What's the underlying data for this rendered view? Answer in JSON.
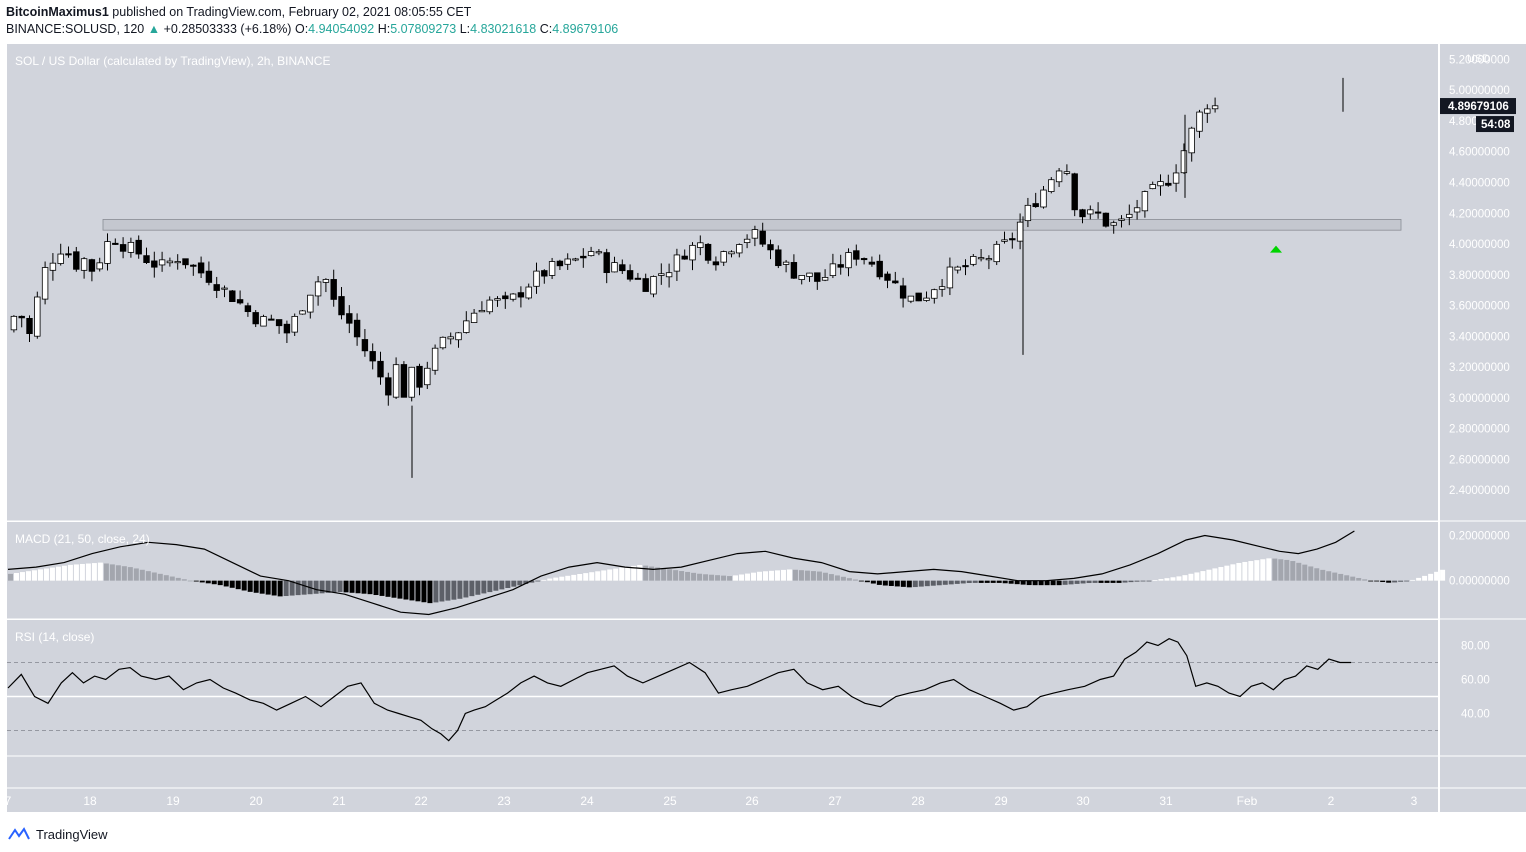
{
  "header": {
    "author": "BitcoinMaximus1",
    "published_text": "published on TradingView.com, February 02, 2021 08:05:55 CET",
    "symbol": "BINANCE:SOLUSD, 120",
    "change": "+0.28503333 (+6.18%)",
    "o_label": "O:",
    "o_value": "4.94054092",
    "h_label": "H:",
    "h_value": "5.07809273",
    "l_label": "L:",
    "l_value": "4.83021618",
    "c_label": "C:",
    "c_value": "4.89679106"
  },
  "footer": {
    "brand": "TradingView"
  },
  "colors": {
    "pane_bg": "#d1d4dc",
    "candle_up": "#ffffff",
    "candle_down": "#000000",
    "zone": "#c4c7cf",
    "signal_arrow": "#00d400",
    "price_tag_bg": "#131722"
  },
  "chart_data": {
    "type": "candlestick",
    "title": "SOL / US Dollar (calculated by TradingView), 2h, BINANCE",
    "currency": "USD",
    "x_ticks": [
      "7",
      "18",
      "19",
      "20",
      "21",
      "22",
      "23",
      "24",
      "25",
      "26",
      "27",
      "28",
      "29",
      "30",
      "31",
      "Feb",
      "2",
      "3"
    ],
    "y_ticks": [
      "5.20000000",
      "5.00000000",
      "4.80000000",
      "4.60000000",
      "4.40000000",
      "4.20000000",
      "4.00000000",
      "3.80000000",
      "3.60000000",
      "3.40000000",
      "3.20000000",
      "3.00000000",
      "2.80000000",
      "2.60000000",
      "2.40000000"
    ],
    "ylim": [
      2.2,
      5.3
    ],
    "last_price": "4.89679106",
    "countdown": "54:08",
    "resistance_zone": [
      4.09,
      4.16
    ],
    "signal_arrow": {
      "type": "buy",
      "at": "Feb 1",
      "price": 3.97
    },
    "close_path": [
      [
        0,
        3.44
      ],
      [
        12,
        3.58
      ],
      [
        24,
        3.4
      ],
      [
        36,
        3.8
      ],
      [
        48,
        3.92
      ],
      [
        58,
        4.0
      ],
      [
        68,
        3.86
      ],
      [
        78,
        3.9
      ],
      [
        88,
        3.82
      ],
      [
        100,
        4.0
      ],
      [
        110,
        4.04
      ],
      [
        120,
        3.98
      ],
      [
        133,
        3.94
      ],
      [
        145,
        3.88
      ],
      [
        158,
        3.85
      ],
      [
        170,
        3.92
      ],
      [
        182,
        3.88
      ],
      [
        194,
        3.82
      ],
      [
        205,
        3.78
      ],
      [
        218,
        3.7
      ],
      [
        230,
        3.64
      ],
      [
        242,
        3.56
      ],
      [
        255,
        3.5
      ],
      [
        268,
        3.5
      ],
      [
        282,
        3.42
      ],
      [
        294,
        3.58
      ],
      [
        306,
        3.72
      ],
      [
        318,
        3.8
      ],
      [
        330,
        3.58
      ],
      [
        342,
        3.5
      ],
      [
        352,
        3.38
      ],
      [
        362,
        3.28
      ],
      [
        372,
        3.16
      ],
      [
        382,
        3.06
      ],
      [
        390,
        3.2
      ],
      [
        397,
        3.02
      ],
      [
        405,
        3.16
      ],
      [
        412,
        3.08
      ],
      [
        420,
        3.2
      ],
      [
        430,
        3.3
      ],
      [
        440,
        3.38
      ],
      [
        450,
        3.42
      ],
      [
        462,
        3.52
      ],
      [
        474,
        3.6
      ],
      [
        486,
        3.64
      ],
      [
        498,
        3.6
      ],
      [
        510,
        3.66
      ],
      [
        522,
        3.74
      ],
      [
        534,
        3.8
      ],
      [
        546,
        3.84
      ],
      [
        558,
        3.86
      ],
      [
        572,
        3.9
      ],
      [
        586,
        3.96
      ],
      [
        600,
        3.86
      ],
      [
        614,
        3.84
      ],
      [
        628,
        3.78
      ],
      [
        640,
        3.74
      ],
      [
        652,
        3.8
      ],
      [
        666,
        3.86
      ],
      [
        680,
        3.96
      ],
      [
        694,
        4.0
      ],
      [
        708,
        3.9
      ],
      [
        720,
        3.96
      ],
      [
        734,
        4.04
      ],
      [
        748,
        4.06
      ],
      [
        760,
        3.98
      ],
      [
        772,
        3.9
      ],
      [
        786,
        3.82
      ],
      [
        800,
        3.8
      ],
      [
        812,
        3.76
      ],
      [
        826,
        3.82
      ],
      [
        840,
        3.9
      ],
      [
        852,
        3.94
      ],
      [
        866,
        3.88
      ],
      [
        880,
        3.8
      ],
      [
        894,
        3.7
      ],
      [
        906,
        3.64
      ],
      [
        918,
        3.66
      ],
      [
        930,
        3.74
      ],
      [
        942,
        3.8
      ],
      [
        955,
        3.84
      ],
      [
        970,
        3.88
      ],
      [
        984,
        3.92
      ],
      [
        996,
        3.98
      ],
      [
        1006,
        4.04
      ],
      [
        1016,
        4.16
      ],
      [
        1026,
        4.26
      ],
      [
        1036,
        4.34
      ],
      [
        1046,
        4.44
      ],
      [
        1054,
        4.52
      ],
      [
        1062,
        4.48
      ],
      [
        1070,
        4.22
      ],
      [
        1080,
        4.18
      ],
      [
        1090,
        4.2
      ],
      [
        1100,
        4.14
      ],
      [
        1110,
        4.12
      ],
      [
        1120,
        4.16
      ],
      [
        1130,
        4.24
      ],
      [
        1140,
        4.3
      ],
      [
        1150,
        4.36
      ],
      [
        1160,
        4.4
      ],
      [
        1170,
        4.5
      ],
      [
        1180,
        4.64
      ],
      [
        1190,
        4.8
      ],
      [
        1200,
        4.92
      ],
      [
        1210,
        4.89
      ]
    ],
    "macd": {
      "label": "MACD (21, 50, close, 24)",
      "y_ticks": [
        "0.20000000",
        "0.00000000"
      ],
      "ylim": [
        -0.17,
        0.26
      ],
      "line": [
        [
          0,
          0.05
        ],
        [
          30,
          0.06
        ],
        [
          60,
          0.08
        ],
        [
          90,
          0.12
        ],
        [
          120,
          0.15
        ],
        [
          150,
          0.17
        ],
        [
          180,
          0.16
        ],
        [
          210,
          0.14
        ],
        [
          240,
          0.08
        ],
        [
          270,
          0.02
        ],
        [
          300,
          0.0
        ],
        [
          330,
          -0.04
        ],
        [
          360,
          -0.06
        ],
        [
          390,
          -0.1
        ],
        [
          420,
          -0.14
        ],
        [
          450,
          -0.15
        ],
        [
          480,
          -0.12
        ],
        [
          510,
          -0.08
        ],
        [
          540,
          -0.04
        ],
        [
          570,
          0.02
        ],
        [
          600,
          0.06
        ],
        [
          630,
          0.08
        ],
        [
          660,
          0.06
        ],
        [
          690,
          0.05
        ],
        [
          720,
          0.06
        ],
        [
          750,
          0.09
        ],
        [
          780,
          0.12
        ],
        [
          810,
          0.13
        ],
        [
          840,
          0.1
        ],
        [
          870,
          0.08
        ],
        [
          900,
          0.04
        ],
        [
          930,
          0.03
        ],
        [
          960,
          0.04
        ],
        [
          990,
          0.05
        ],
        [
          1020,
          0.04
        ],
        [
          1050,
          0.02
        ],
        [
          1080,
          0.0
        ],
        [
          1110,
          0.0
        ],
        [
          1140,
          0.01
        ],
        [
          1170,
          0.03
        ],
        [
          1200,
          0.07
        ],
        [
          1230,
          0.12
        ],
        [
          1260,
          0.18
        ],
        [
          1280,
          0.2
        ],
        [
          1310,
          0.18
        ],
        [
          1340,
          0.15
        ],
        [
          1360,
          0.13
        ],
        [
          1380,
          0.12
        ],
        [
          1400,
          0.14
        ],
        [
          1420,
          0.17
        ],
        [
          1440,
          0.22
        ]
      ],
      "hist": [
        [
          0,
          0.03
        ],
        [
          30,
          0.05
        ],
        [
          60,
          0.07
        ],
        [
          90,
          0.08
        ],
        [
          120,
          0.06
        ],
        [
          150,
          0.03
        ],
        [
          180,
          0.0
        ],
        [
          210,
          -0.02
        ],
        [
          240,
          -0.05
        ],
        [
          270,
          -0.07
        ],
        [
          300,
          -0.06
        ],
        [
          330,
          -0.05
        ],
        [
          360,
          -0.06
        ],
        [
          390,
          -0.08
        ],
        [
          420,
          -0.1
        ],
        [
          450,
          -0.08
        ],
        [
          480,
          -0.05
        ],
        [
          510,
          -0.02
        ],
        [
          540,
          0.01
        ],
        [
          570,
          0.03
        ],
        [
          600,
          0.05
        ],
        [
          630,
          0.07
        ],
        [
          660,
          0.05
        ],
        [
          690,
          0.03
        ],
        [
          720,
          0.02
        ],
        [
          750,
          0.04
        ],
        [
          780,
          0.05
        ],
        [
          810,
          0.04
        ],
        [
          840,
          0.01
        ],
        [
          870,
          -0.02
        ],
        [
          900,
          -0.03
        ],
        [
          930,
          -0.02
        ],
        [
          960,
          -0.01
        ],
        [
          990,
          -0.01
        ],
        [
          1020,
          -0.02
        ],
        [
          1050,
          -0.02
        ],
        [
          1080,
          -0.01
        ],
        [
          1110,
          -0.01
        ],
        [
          1140,
          0.0
        ],
        [
          1170,
          0.02
        ],
        [
          1200,
          0.05
        ],
        [
          1230,
          0.08
        ],
        [
          1260,
          0.1
        ],
        [
          1280,
          0.09
        ],
        [
          1310,
          0.05
        ],
        [
          1340,
          0.02
        ],
        [
          1360,
          0.0
        ],
        [
          1380,
          -0.01
        ],
        [
          1400,
          0.0
        ],
        [
          1420,
          0.03
        ],
        [
          1440,
          0.06
        ]
      ]
    },
    "rsi": {
      "label": "RSI (14, close)",
      "y_ticks": [
        "80.00",
        "60.00",
        "40.00"
      ],
      "ylim": [
        15,
        95
      ],
      "upper_band": 70,
      "middle": 50,
      "lower_band": 30,
      "values": [
        [
          0,
          55
        ],
        [
          12,
          63
        ],
        [
          24,
          50
        ],
        [
          36,
          46
        ],
        [
          48,
          58
        ],
        [
          58,
          64
        ],
        [
          68,
          58
        ],
        [
          78,
          62
        ],
        [
          88,
          60
        ],
        [
          100,
          66
        ],
        [
          110,
          67
        ],
        [
          120,
          62
        ],
        [
          133,
          60
        ],
        [
          145,
          62
        ],
        [
          158,
          54
        ],
        [
          170,
          58
        ],
        [
          182,
          60
        ],
        [
          194,
          55
        ],
        [
          205,
          52
        ],
        [
          218,
          48
        ],
        [
          230,
          46
        ],
        [
          242,
          42
        ],
        [
          255,
          46
        ],
        [
          268,
          50
        ],
        [
          282,
          44
        ],
        [
          294,
          50
        ],
        [
          306,
          56
        ],
        [
          318,
          58
        ],
        [
          330,
          46
        ],
        [
          342,
          42
        ],
        [
          352,
          40
        ],
        [
          362,
          38
        ],
        [
          372,
          36
        ],
        [
          382,
          31
        ],
        [
          390,
          28
        ],
        [
          397,
          24
        ],
        [
          405,
          30
        ],
        [
          412,
          40
        ],
        [
          420,
          42
        ],
        [
          430,
          44
        ],
        [
          440,
          48
        ],
        [
          450,
          52
        ],
        [
          462,
          58
        ],
        [
          474,
          62
        ],
        [
          486,
          58
        ],
        [
          498,
          56
        ],
        [
          510,
          60
        ],
        [
          522,
          64
        ],
        [
          534,
          66
        ],
        [
          546,
          68
        ],
        [
          558,
          62
        ],
        [
          572,
          58
        ],
        [
          586,
          62
        ],
        [
          600,
          66
        ],
        [
          614,
          70
        ],
        [
          628,
          64
        ],
        [
          640,
          52
        ],
        [
          652,
          54
        ],
        [
          666,
          56
        ],
        [
          680,
          60
        ],
        [
          694,
          64
        ],
        [
          708,
          66
        ],
        [
          720,
          58
        ],
        [
          734,
          54
        ],
        [
          748,
          56
        ],
        [
          760,
          50
        ],
        [
          772,
          46
        ],
        [
          786,
          44
        ],
        [
          800,
          50
        ],
        [
          812,
          52
        ],
        [
          826,
          54
        ],
        [
          840,
          58
        ],
        [
          852,
          60
        ],
        [
          866,
          54
        ],
        [
          880,
          50
        ],
        [
          894,
          46
        ],
        [
          906,
          42
        ],
        [
          918,
          44
        ],
        [
          930,
          50
        ],
        [
          942,
          52
        ],
        [
          955,
          54
        ],
        [
          970,
          56
        ],
        [
          984,
          60
        ],
        [
          996,
          62
        ],
        [
          1006,
          72
        ],
        [
          1016,
          76
        ],
        [
          1026,
          82
        ],
        [
          1036,
          80
        ],
        [
          1046,
          84
        ],
        [
          1054,
          82
        ],
        [
          1062,
          74
        ],
        [
          1070,
          56
        ],
        [
          1080,
          58
        ],
        [
          1090,
          56
        ],
        [
          1100,
          52
        ],
        [
          1110,
          50
        ],
        [
          1120,
          56
        ],
        [
          1130,
          58
        ],
        [
          1140,
          54
        ],
        [
          1150,
          60
        ],
        [
          1160,
          62
        ],
        [
          1170,
          68
        ],
        [
          1180,
          66
        ],
        [
          1190,
          72
        ],
        [
          1200,
          70
        ],
        [
          1210,
          70
        ]
      ]
    }
  }
}
